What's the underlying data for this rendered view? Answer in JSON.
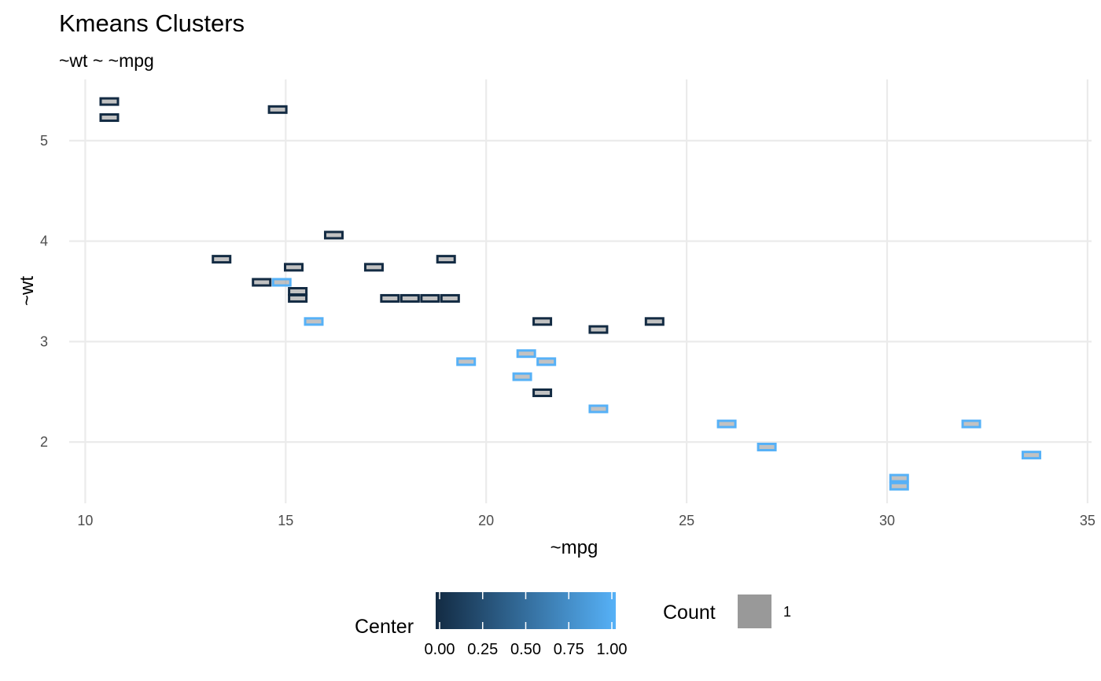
{
  "chart_data": {
    "type": "tile",
    "title": "Kmeans Clusters",
    "subtitle": "~wt ~ ~mpg",
    "xlabel": "~mpg",
    "ylabel": "~wt",
    "xlim": [
      9.6,
      35.1
    ],
    "ylim": [
      1.39,
      5.61
    ],
    "xticks": [
      10,
      15,
      20,
      25,
      30,
      35
    ],
    "yticks": [
      2,
      3,
      4,
      5
    ],
    "grid": true,
    "points": [
      {
        "x": 10.6,
        "y": 5.39,
        "center": 0
      },
      {
        "x": 10.6,
        "y": 5.23,
        "center": 0
      },
      {
        "x": 14.8,
        "y": 5.31,
        "center": 0
      },
      {
        "x": 16.2,
        "y": 4.06,
        "center": 0
      },
      {
        "x": 13.4,
        "y": 3.82,
        "center": 0
      },
      {
        "x": 19.0,
        "y": 3.82,
        "center": 0
      },
      {
        "x": 15.2,
        "y": 3.74,
        "center": 0
      },
      {
        "x": 17.2,
        "y": 3.74,
        "center": 0
      },
      {
        "x": 14.4,
        "y": 3.59,
        "center": 0
      },
      {
        "x": 14.9,
        "y": 3.59,
        "center": 1
      },
      {
        "x": 15.3,
        "y": 3.5,
        "center": 0
      },
      {
        "x": 15.3,
        "y": 3.43,
        "center": 0
      },
      {
        "x": 17.6,
        "y": 3.43,
        "center": 0
      },
      {
        "x": 18.1,
        "y": 3.43,
        "center": 0
      },
      {
        "x": 18.6,
        "y": 3.43,
        "center": 0
      },
      {
        "x": 19.1,
        "y": 3.43,
        "center": 0
      },
      {
        "x": 15.7,
        "y": 3.2,
        "center": 1
      },
      {
        "x": 21.4,
        "y": 3.2,
        "center": 0
      },
      {
        "x": 24.2,
        "y": 3.2,
        "center": 0
      },
      {
        "x": 22.8,
        "y": 3.12,
        "center": 0
      },
      {
        "x": 21.0,
        "y": 2.88,
        "center": 1
      },
      {
        "x": 19.5,
        "y": 2.8,
        "center": 1
      },
      {
        "x": 21.5,
        "y": 2.8,
        "center": 1
      },
      {
        "x": 20.9,
        "y": 2.65,
        "center": 1
      },
      {
        "x": 21.4,
        "y": 2.49,
        "center": 0
      },
      {
        "x": 22.8,
        "y": 2.33,
        "center": 1
      },
      {
        "x": 26.0,
        "y": 2.18,
        "center": 1
      },
      {
        "x": 32.1,
        "y": 2.18,
        "center": 1
      },
      {
        "x": 27.0,
        "y": 1.95,
        "center": 1
      },
      {
        "x": 33.6,
        "y": 1.87,
        "center": 1
      },
      {
        "x": 30.3,
        "y": 1.64,
        "center": 1
      },
      {
        "x": 30.3,
        "y": 1.56,
        "center": 1
      }
    ],
    "legend": {
      "position": "bottom",
      "center": {
        "title": "Center",
        "labels": [
          "0.00",
          "0.25",
          "0.50",
          "0.75",
          "1.00"
        ],
        "low_color": "#132b43",
        "high_color": "#56b1f7"
      },
      "count": {
        "title": "Count",
        "value": "1",
        "color": "#999999"
      }
    }
  }
}
